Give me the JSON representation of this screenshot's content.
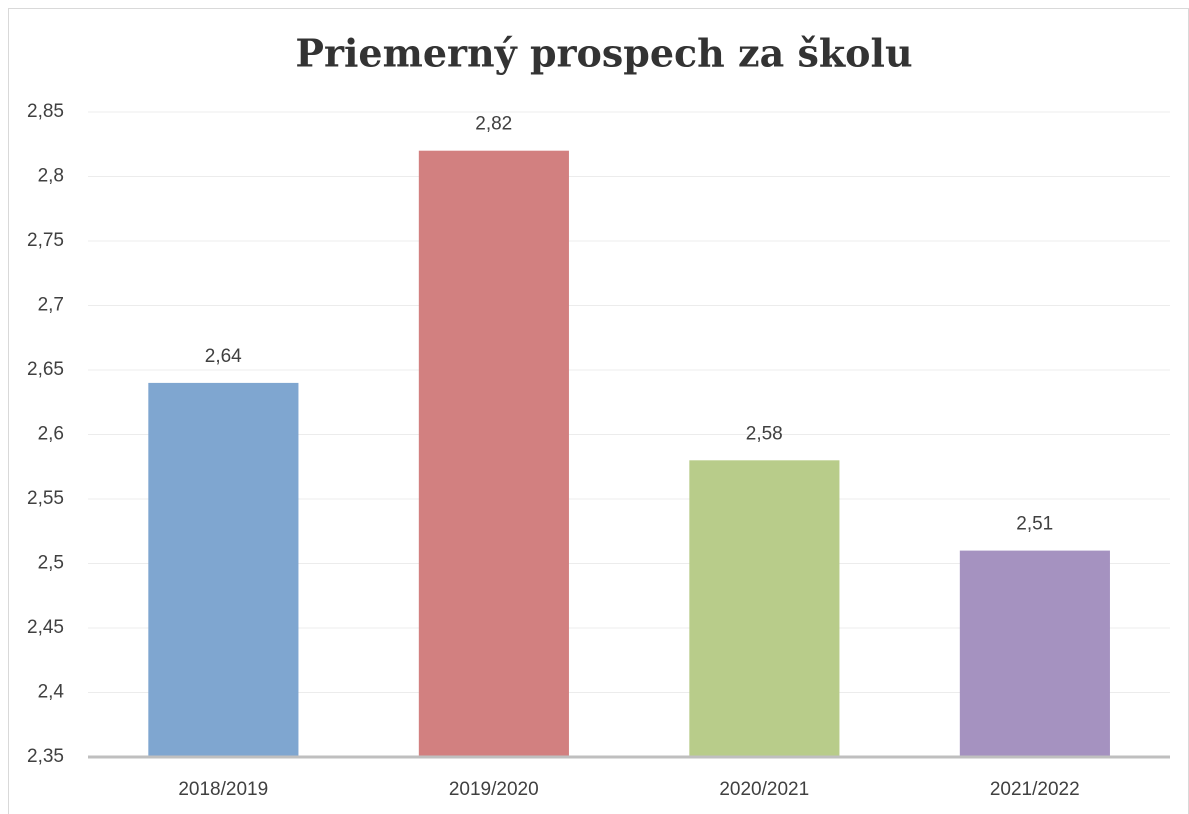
{
  "chart_data": {
    "type": "bar",
    "title": "Priemerný prospech za školu",
    "categories": [
      "2018/2019",
      "2019/2020",
      "2020/2021",
      "2021/2022"
    ],
    "values": [
      2.64,
      2.82,
      2.58,
      2.51
    ],
    "value_labels": [
      "2,64",
      "2,82",
      "2,58",
      "2,51"
    ],
    "colors": [
      "#7fa6d0",
      "#d28080",
      "#b8cc8a",
      "#a592c0"
    ],
    "ylim": [
      2.35,
      2.85
    ],
    "yticks": [
      {
        "value": 2.35,
        "label": "2,35"
      },
      {
        "value": 2.4,
        "label": "2,4"
      },
      {
        "value": 2.45,
        "label": "2,45"
      },
      {
        "value": 2.5,
        "label": "2,5"
      },
      {
        "value": 2.55,
        "label": "2,55"
      },
      {
        "value": 2.6,
        "label": "2,6"
      },
      {
        "value": 2.65,
        "label": "2,65"
      },
      {
        "value": 2.7,
        "label": "2,7"
      },
      {
        "value": 2.75,
        "label": "2,75"
      },
      {
        "value": 2.8,
        "label": "2,8"
      },
      {
        "value": 2.85,
        "label": "2,85"
      }
    ],
    "grid": true
  }
}
